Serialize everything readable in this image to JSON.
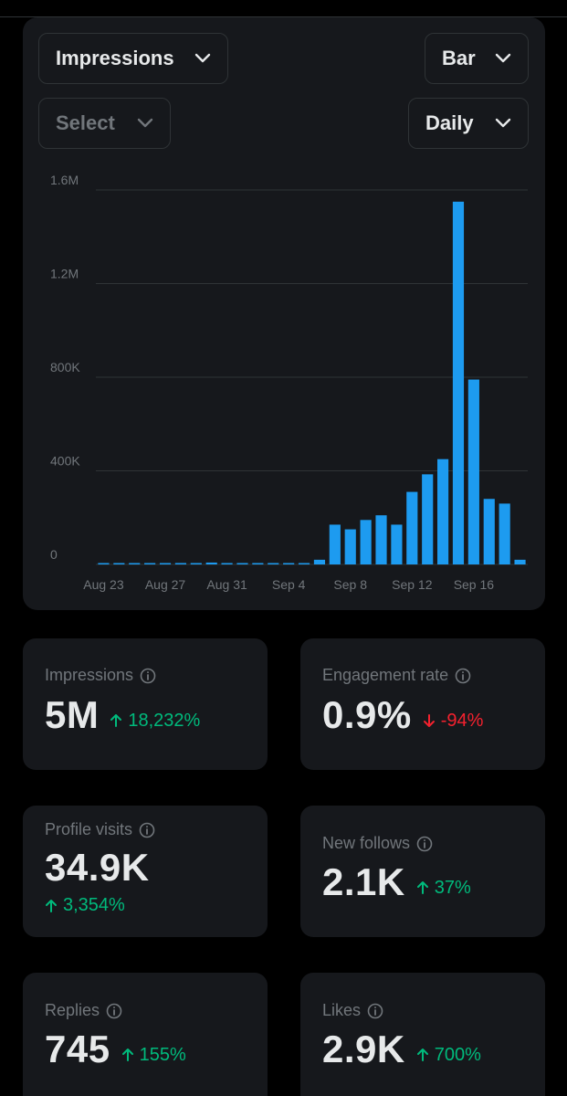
{
  "controls": {
    "metric": "Impressions",
    "chart_type": "Bar",
    "compare": "Select",
    "interval": "Daily"
  },
  "colors": {
    "bar": "#1d9bf0",
    "positive": "#00ba7c",
    "negative": "#f4212e",
    "panel": "#16181c"
  },
  "chart_data": {
    "type": "bar",
    "x_tick_labels": [
      "Aug 23",
      "Aug 27",
      "Aug 31",
      "Sep 4",
      "Sep 8",
      "Sep 12",
      "Sep 16"
    ],
    "y_tick_labels": [
      "0",
      "400K",
      "800K",
      "1.2M",
      "1.6M"
    ],
    "ylim": [
      0,
      1600000
    ],
    "grid": true,
    "series": [
      {
        "values": [
          5000,
          3000,
          2000,
          2000,
          5000,
          6000,
          4000,
          8000,
          3000,
          2000,
          2000,
          2000,
          2000,
          3000,
          20000,
          170000,
          150000,
          190000,
          210000,
          170000,
          310000,
          385000,
          450000,
          1550000,
          790000,
          280000,
          260000,
          20000
        ]
      }
    ]
  },
  "stats": {
    "impressions": {
      "label": "Impressions",
      "value": "5M",
      "delta": "18,232%",
      "direction": "up"
    },
    "engagement_rate": {
      "label": "Engagement rate",
      "value": "0.9%",
      "delta": "-94%",
      "direction": "down"
    },
    "profile_visits": {
      "label": "Profile visits",
      "value": "34.9K",
      "delta": "3,354%",
      "direction": "up"
    },
    "new_follows": {
      "label": "New follows",
      "value": "2.1K",
      "delta": "37%",
      "direction": "up"
    },
    "replies": {
      "label": "Replies",
      "value": "745",
      "delta": "155%",
      "direction": "up"
    },
    "likes": {
      "label": "Likes",
      "value": "2.9K",
      "delta": "700%",
      "direction": "up"
    }
  }
}
